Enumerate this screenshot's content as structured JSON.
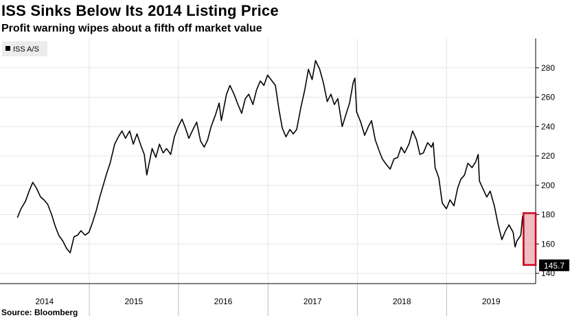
{
  "header": {
    "title": "ISS Sinks Below Its 2014 Listing Price",
    "subtitle": "Profit warning wipes about a fifth off market value"
  },
  "footer": {
    "source": "Source: Bloomberg"
  },
  "chart_data": {
    "type": "line",
    "series": [
      {
        "name": "ISS A/S",
        "color": "#000000",
        "points": [
          [
            "2014-03-13",
            178
          ],
          [
            "2014-03-28",
            184
          ],
          [
            "2014-04-15",
            189
          ],
          [
            "2014-04-30",
            196
          ],
          [
            "2014-05-15",
            202
          ],
          [
            "2014-05-30",
            198
          ],
          [
            "2014-06-16",
            192
          ],
          [
            "2014-06-30",
            190
          ],
          [
            "2014-07-15",
            187
          ],
          [
            "2014-07-31",
            180
          ],
          [
            "2014-08-15",
            172
          ],
          [
            "2014-08-29",
            166
          ],
          [
            "2014-09-15",
            162
          ],
          [
            "2014-09-30",
            157
          ],
          [
            "2014-10-15",
            154
          ],
          [
            "2014-10-31",
            165
          ],
          [
            "2014-11-14",
            166
          ],
          [
            "2014-11-28",
            169
          ],
          [
            "2014-12-15",
            166
          ],
          [
            "2014-12-31",
            168
          ],
          [
            "2015-01-15",
            175
          ],
          [
            "2015-01-30",
            183
          ],
          [
            "2015-02-13",
            192
          ],
          [
            "2015-02-27",
            200
          ],
          [
            "2015-03-13",
            208
          ],
          [
            "2015-03-27",
            215
          ],
          [
            "2015-04-15",
            228
          ],
          [
            "2015-04-30",
            233
          ],
          [
            "2015-05-15",
            237
          ],
          [
            "2015-05-29",
            232
          ],
          [
            "2015-06-15",
            237
          ],
          [
            "2015-06-30",
            228
          ],
          [
            "2015-07-15",
            235
          ],
          [
            "2015-07-31",
            227
          ],
          [
            "2015-08-14",
            221
          ],
          [
            "2015-08-24",
            207
          ],
          [
            "2015-09-15",
            225
          ],
          [
            "2015-09-30",
            219
          ],
          [
            "2015-10-15",
            228
          ],
          [
            "2015-10-30",
            222
          ],
          [
            "2015-11-13",
            225
          ],
          [
            "2015-11-30",
            221
          ],
          [
            "2015-12-15",
            233
          ],
          [
            "2015-12-31",
            240
          ],
          [
            "2016-01-15",
            245
          ],
          [
            "2016-01-29",
            239
          ],
          [
            "2016-02-12",
            232
          ],
          [
            "2016-02-29",
            238
          ],
          [
            "2016-03-15",
            243
          ],
          [
            "2016-03-31",
            230
          ],
          [
            "2016-04-15",
            226
          ],
          [
            "2016-04-29",
            231
          ],
          [
            "2016-05-13",
            240
          ],
          [
            "2016-05-31",
            248
          ],
          [
            "2016-06-15",
            256
          ],
          [
            "2016-06-24",
            244
          ],
          [
            "2016-07-15",
            262
          ],
          [
            "2016-07-29",
            268
          ],
          [
            "2016-08-15",
            262
          ],
          [
            "2016-08-31",
            255
          ],
          [
            "2016-09-15",
            249
          ],
          [
            "2016-09-30",
            259
          ],
          [
            "2016-10-14",
            262
          ],
          [
            "2016-10-31",
            255
          ],
          [
            "2016-11-15",
            265
          ],
          [
            "2016-11-30",
            271
          ],
          [
            "2016-12-15",
            268
          ],
          [
            "2016-12-30",
            275
          ],
          [
            "2017-01-13",
            272
          ],
          [
            "2017-01-31",
            268
          ],
          [
            "2017-02-15",
            251
          ],
          [
            "2017-02-28",
            239
          ],
          [
            "2017-03-15",
            233
          ],
          [
            "2017-03-31",
            238
          ],
          [
            "2017-04-14",
            235
          ],
          [
            "2017-04-28",
            238
          ],
          [
            "2017-05-15",
            253
          ],
          [
            "2017-05-31",
            265
          ],
          [
            "2017-06-15",
            279
          ],
          [
            "2017-06-30",
            272
          ],
          [
            "2017-07-14",
            285
          ],
          [
            "2017-07-31",
            279
          ],
          [
            "2017-08-15",
            270
          ],
          [
            "2017-08-31",
            257
          ],
          [
            "2017-09-15",
            262
          ],
          [
            "2017-09-29",
            255
          ],
          [
            "2017-10-13",
            259
          ],
          [
            "2017-10-31",
            240
          ],
          [
            "2017-11-15",
            248
          ],
          [
            "2017-11-30",
            256
          ],
          [
            "2017-12-15",
            270
          ],
          [
            "2017-12-22",
            273
          ],
          [
            "2017-12-29",
            250
          ],
          [
            "2018-01-15",
            243
          ],
          [
            "2018-01-31",
            234
          ],
          [
            "2018-02-15",
            240
          ],
          [
            "2018-02-28",
            244
          ],
          [
            "2018-03-15",
            231
          ],
          [
            "2018-03-30",
            224
          ],
          [
            "2018-04-13",
            218
          ],
          [
            "2018-04-30",
            214
          ],
          [
            "2018-05-15",
            211
          ],
          [
            "2018-05-31",
            218
          ],
          [
            "2018-06-15",
            219
          ],
          [
            "2018-06-29",
            226
          ],
          [
            "2018-07-13",
            222
          ],
          [
            "2018-07-31",
            228
          ],
          [
            "2018-08-15",
            237
          ],
          [
            "2018-08-31",
            231
          ],
          [
            "2018-09-14",
            221
          ],
          [
            "2018-09-28",
            222
          ],
          [
            "2018-10-15",
            229
          ],
          [
            "2018-10-31",
            226
          ],
          [
            "2018-11-07",
            229
          ],
          [
            "2018-11-15",
            212
          ],
          [
            "2018-11-30",
            205
          ],
          [
            "2018-12-14",
            188
          ],
          [
            "2018-12-31",
            184
          ],
          [
            "2019-01-15",
            190
          ],
          [
            "2019-01-31",
            186
          ],
          [
            "2019-02-15",
            198
          ],
          [
            "2019-02-28",
            204
          ],
          [
            "2019-03-15",
            207
          ],
          [
            "2019-03-29",
            215
          ],
          [
            "2019-04-15",
            212
          ],
          [
            "2019-04-30",
            216
          ],
          [
            "2019-05-10",
            221
          ],
          [
            "2019-05-15",
            203
          ],
          [
            "2019-05-31",
            197
          ],
          [
            "2019-06-14",
            192
          ],
          [
            "2019-06-28",
            196
          ],
          [
            "2019-07-15",
            186
          ],
          [
            "2019-07-31",
            173
          ],
          [
            "2019-08-15",
            163
          ],
          [
            "2019-08-30",
            169
          ],
          [
            "2019-09-13",
            173
          ],
          [
            "2019-09-30",
            168
          ],
          [
            "2019-10-08",
            158
          ],
          [
            "2019-10-15",
            162
          ],
          [
            "2019-10-31",
            166
          ],
          [
            "2019-11-08",
            179
          ],
          [
            "2019-11-13",
            177
          ],
          [
            "2019-11-14",
            145.7
          ]
        ]
      }
    ],
    "last_value_label": "145.7",
    "highlight_band": {
      "color": "#e8a3a8",
      "y_range": [
        145.7,
        181
      ]
    },
    "x_axis": {
      "type": "time",
      "range": [
        "2014-01-01",
        "2019-12-31"
      ],
      "tick_labels": [
        "2014",
        "2015",
        "2016",
        "2017",
        "2018",
        "2019"
      ]
    },
    "y_axis": {
      "position": "right",
      "range": [
        133,
        300
      ],
      "ticks": [
        140,
        160,
        180,
        200,
        220,
        240,
        260,
        280
      ]
    },
    "grid": true,
    "legend_position": "top-left"
  }
}
